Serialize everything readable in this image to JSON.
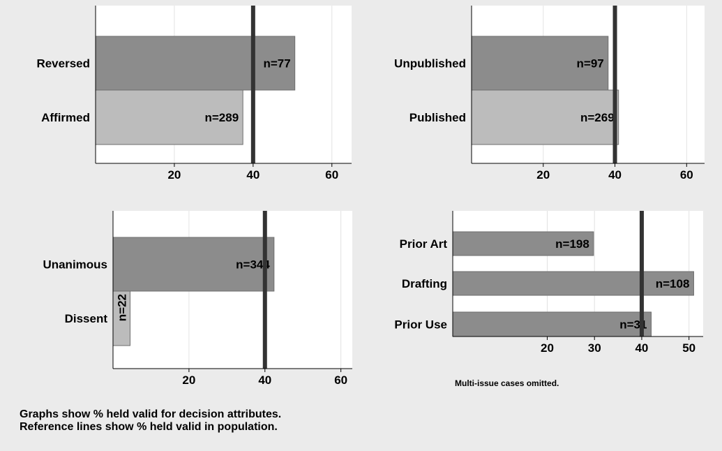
{
  "colors": {
    "page_background": "#ebebeb",
    "plot_background": "#ffffff",
    "bar_dark": "#8c8c8c",
    "bar_light": "#bcbcbc",
    "bar_outline": "#6e6e6e",
    "reference_line": "#333333",
    "gridline": "#e2e2e2"
  },
  "footer": {
    "line1": "Graphs show % held valid for decision attributes.",
    "line2": "Reference lines show % held valid in population."
  },
  "chart_data": [
    {
      "type": "bar",
      "orientation": "horizontal",
      "categories": [
        "Reversed",
        "Affirmed"
      ],
      "values": [
        50.6,
        37.4
      ],
      "data_labels": [
        "n=77",
        "n=289"
      ],
      "bar_colors": [
        "dark",
        "light"
      ],
      "data_label_rotation": [
        0,
        0
      ],
      "xlim": [
        0,
        65
      ],
      "xticks": [
        20,
        40,
        60
      ],
      "reference_line": 40,
      "grid": true,
      "note": ""
    },
    {
      "type": "bar",
      "orientation": "horizontal",
      "categories": [
        "Unpublished",
        "Published"
      ],
      "values": [
        38.1,
        41.0
      ],
      "data_labels": [
        "n=97",
        "n=269"
      ],
      "bar_colors": [
        "dark",
        "light"
      ],
      "data_label_rotation": [
        0,
        0
      ],
      "xlim": [
        0,
        65
      ],
      "xticks": [
        20,
        40,
        60
      ],
      "reference_line": 40,
      "grid": true,
      "note": ""
    },
    {
      "type": "bar",
      "orientation": "horizontal",
      "categories": [
        "Unanimous",
        "Dissent"
      ],
      "values": [
        42.4,
        4.5
      ],
      "data_labels": [
        "n=344",
        "n=22"
      ],
      "bar_colors": [
        "dark",
        "light"
      ],
      "data_label_rotation": [
        0,
        -90
      ],
      "xlim": [
        0,
        63
      ],
      "xticks": [
        20,
        40,
        60
      ],
      "reference_line": 40,
      "grid": true,
      "note": ""
    },
    {
      "type": "bar",
      "orientation": "horizontal",
      "categories": [
        "Prior Art",
        "Drafting",
        "Prior Use"
      ],
      "values": [
        29.8,
        51.0,
        42.0
      ],
      "data_labels": [
        "n=198",
        "n=108",
        "n=31"
      ],
      "bar_colors": [
        "dark",
        "dark",
        "dark"
      ],
      "data_label_rotation": [
        0,
        0,
        0
      ],
      "xlim": [
        0,
        53
      ],
      "xticks": [
        20,
        30,
        40,
        50
      ],
      "reference_line": 40,
      "grid": true,
      "note": "Multi-issue cases omitted."
    }
  ]
}
